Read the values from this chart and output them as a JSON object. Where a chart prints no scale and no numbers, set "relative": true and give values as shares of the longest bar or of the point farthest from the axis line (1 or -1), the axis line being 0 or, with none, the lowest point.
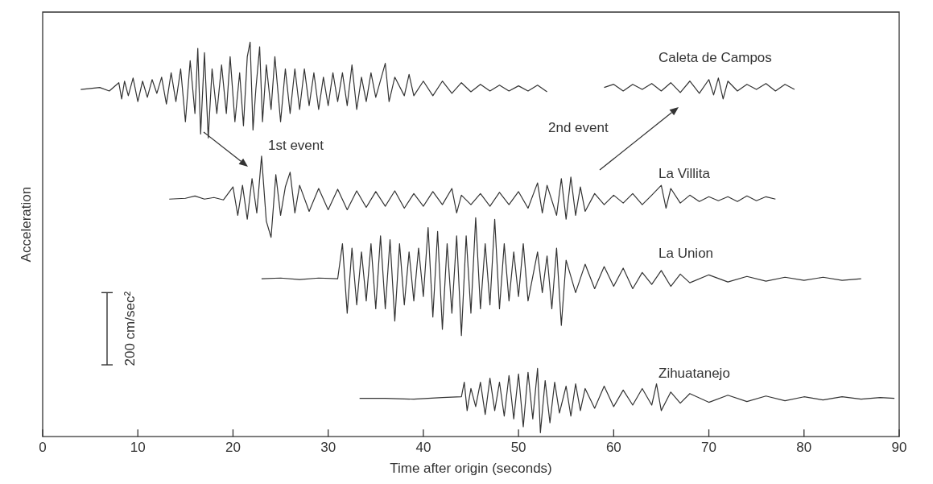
{
  "chart_data": {
    "type": "line",
    "relative": true,
    "xlabel": "Time after origin (seconds)",
    "ylabel": "Acceleration",
    "xlim": [
      0,
      90
    ],
    "xticks": [
      0,
      10,
      20,
      30,
      40,
      50,
      60,
      70,
      80,
      90
    ],
    "annotations": [
      "1st event",
      "2nd event",
      "200 cm/sec²"
    ],
    "series": [
      {
        "name": "Caleta de Campos",
        "color": "#333333",
        "x": [
          4,
          6,
          7,
          8,
          8.3,
          8.6,
          9,
          9.5,
          10,
          10.5,
          11,
          11.5,
          12,
          12.5,
          13,
          13.5,
          14,
          14.5,
          15,
          15.5,
          16,
          16.3,
          16.6,
          17,
          17.4,
          17.8,
          18.3,
          18.8,
          19.3,
          19.7,
          20.2,
          20.7,
          21.1,
          21.5,
          21.8,
          22.1,
          22.4,
          22.8,
          23.1,
          23.5,
          24,
          24.4,
          25,
          25.5,
          26,
          26.5,
          27,
          27.5,
          28,
          28.5,
          29,
          29.5,
          30,
          30.5,
          31,
          31.5,
          32,
          32.5,
          33,
          33.5,
          34,
          34.5,
          35,
          36,
          36.4,
          37,
          38,
          38.5,
          39,
          40,
          41,
          42,
          43,
          44,
          45,
          46,
          47,
          48,
          49,
          50,
          51,
          52,
          53,
          56,
          59,
          60,
          61,
          62,
          63,
          64,
          65,
          66,
          67,
          68,
          69,
          70,
          70.5,
          71,
          71.5,
          72,
          73,
          74,
          75,
          76,
          77,
          78,
          79
        ],
        "values": [
          0.88,
          0.885,
          0.876,
          0.897,
          0.856,
          0.901,
          0.864,
          0.909,
          0.849,
          0.901,
          0.86,
          0.905,
          0.87,
          0.911,
          0.843,
          0.922,
          0.849,
          0.932,
          0.798,
          0.953,
          0.819,
          0.984,
          0.767,
          0.973,
          0.757,
          0.932,
          0.819,
          0.942,
          0.819,
          0.963,
          0.798,
          0.922,
          0.788,
          0.963,
          1.0,
          0.777,
          0.88,
          0.988,
          0.798,
          0.942,
          0.829,
          0.963,
          0.798,
          0.932,
          0.819,
          0.932,
          0.829,
          0.932,
          0.839,
          0.922,
          0.829,
          0.911,
          0.839,
          0.922,
          0.849,
          0.922,
          0.839,
          0.942,
          0.829,
          0.911,
          0.849,
          0.922,
          0.86,
          0.946,
          0.849,
          0.911,
          0.864,
          0.918,
          0.864,
          0.901,
          0.864,
          0.901,
          0.87,
          0.897,
          0.874,
          0.893,
          0.876,
          0.891,
          0.876,
          0.889,
          0.876,
          0.891,
          0.874,
          null,
          0.885,
          0.893,
          0.876,
          0.893,
          0.88,
          0.895,
          0.876,
          0.897,
          0.872,
          0.901,
          0.87,
          0.905,
          0.866,
          0.909,
          0.856,
          0.901,
          0.876,
          0.893,
          0.88,
          0.895,
          0.876,
          0.893,
          0.88
        ]
      },
      {
        "name": "La Villita",
        "color": "#333333",
        "x": [
          13.3,
          15,
          16,
          17,
          18,
          19,
          20,
          20.5,
          21,
          21.5,
          22,
          22.5,
          23,
          23.5,
          24,
          24.5,
          25,
          25.5,
          26,
          26.5,
          27,
          28,
          29,
          30,
          31,
          32,
          33,
          34,
          35,
          36,
          37,
          38,
          39,
          40,
          41,
          42,
          43,
          43.5,
          44,
          45,
          46,
          47,
          48,
          49,
          50,
          51,
          52,
          52.5,
          53,
          54,
          54.5,
          55,
          55.5,
          56,
          56.5,
          57,
          58,
          59,
          60,
          61,
          62,
          63,
          64,
          65,
          65.5,
          66,
          67,
          68,
          69,
          70,
          71,
          72,
          73,
          74,
          75,
          76,
          77
        ],
        "values": [
          0.602,
          0.604,
          0.61,
          0.602,
          0.606,
          0.6,
          0.633,
          0.561,
          0.637,
          0.551,
          0.654,
          0.567,
          0.711,
          0.546,
          0.505,
          0.664,
          0.561,
          0.633,
          0.67,
          0.567,
          0.637,
          0.571,
          0.629,
          0.575,
          0.627,
          0.575,
          0.623,
          0.581,
          0.621,
          0.584,
          0.623,
          0.579,
          0.616,
          0.584,
          0.621,
          0.588,
          0.629,
          0.567,
          0.612,
          0.588,
          0.616,
          0.584,
          0.619,
          0.588,
          0.621,
          0.579,
          0.643,
          0.567,
          0.637,
          0.561,
          0.654,
          0.551,
          0.658,
          0.561,
          0.633,
          0.571,
          0.616,
          0.588,
          0.612,
          0.592,
          0.616,
          0.588,
          0.612,
          0.637,
          0.579,
          0.629,
          0.592,
          0.612,
          0.596,
          0.608,
          0.598,
          0.608,
          0.596,
          0.61,
          0.598,
          0.608,
          0.602
        ]
      },
      {
        "name": "La Union",
        "color": "#333333",
        "x": [
          23,
          25,
          27,
          29,
          31,
          31.5,
          32,
          32.5,
          33,
          33.5,
          34,
          34.5,
          35,
          35.5,
          36,
          36.5,
          37,
          37.5,
          38,
          38.5,
          39,
          39.5,
          40,
          40.5,
          41,
          41.5,
          42,
          42.5,
          43,
          43.5,
          44,
          44.5,
          45,
          45.5,
          46,
          46.5,
          47,
          47.5,
          48,
          48.5,
          49,
          49.5,
          50,
          50.5,
          51,
          52,
          52.5,
          53,
          53.5,
          54,
          54.5,
          55,
          56,
          57,
          58,
          59,
          60,
          61,
          62,
          63,
          64,
          65,
          66,
          67,
          68,
          70,
          72,
          74,
          76,
          78,
          80,
          82,
          84,
          86
        ],
        "values": [
          0.4,
          0.402,
          0.398,
          0.402,
          0.4,
          0.489,
          0.313,
          0.478,
          0.334,
          0.468,
          0.344,
          0.489,
          0.324,
          0.509,
          0.324,
          0.499,
          0.293,
          0.489,
          0.334,
          0.468,
          0.344,
          0.478,
          0.355,
          0.53,
          0.303,
          0.52,
          0.272,
          0.489,
          0.313,
          0.509,
          0.256,
          0.509,
          0.313,
          0.555,
          0.324,
          0.489,
          0.334,
          0.551,
          0.324,
          0.489,
          0.344,
          0.468,
          0.355,
          0.489,
          0.344,
          0.468,
          0.365,
          0.458,
          0.324,
          0.478,
          0.282,
          0.447,
          0.365,
          0.437,
          0.375,
          0.431,
          0.381,
          0.427,
          0.375,
          0.416,
          0.386,
          0.421,
          0.381,
          0.412,
          0.39,
          0.41,
          0.392,
          0.406,
          0.394,
          0.404,
          0.396,
          0.404,
          0.396,
          0.4
        ]
      },
      {
        "name": "Zihuatanejo",
        "color": "#333333",
        "x": [
          33.3,
          36,
          39,
          42,
          44,
          44.3,
          44.6,
          45,
          45.5,
          46,
          46.5,
          47,
          47.5,
          48,
          48.5,
          49,
          49.5,
          50,
          50.5,
          51,
          51.5,
          52,
          52.3,
          52.8,
          53.3,
          53.8,
          54.3,
          55,
          55.5,
          56,
          56.5,
          57,
          58,
          59,
          60,
          61,
          62,
          63,
          64,
          64.5,
          65,
          66,
          67,
          68,
          70,
          72,
          74,
          76,
          78,
          80,
          82,
          84,
          86,
          88,
          89.5
        ],
        "values": [
          0.097,
          0.097,
          0.095,
          0.099,
          0.101,
          0.138,
          0.066,
          0.122,
          0.076,
          0.138,
          0.056,
          0.148,
          0.066,
          0.138,
          0.052,
          0.155,
          0.045,
          0.159,
          0.025,
          0.163,
          0.045,
          0.173,
          0.01,
          0.142,
          0.035,
          0.138,
          0.06,
          0.128,
          0.052,
          0.134,
          0.066,
          0.122,
          0.072,
          0.128,
          0.076,
          0.118,
          0.08,
          0.122,
          0.08,
          0.134,
          0.066,
          0.113,
          0.085,
          0.109,
          0.087,
          0.105,
          0.089,
          0.103,
          0.091,
          0.101,
          0.093,
          0.101,
          0.095,
          0.099,
          0.097
        ]
      }
    ]
  }
}
